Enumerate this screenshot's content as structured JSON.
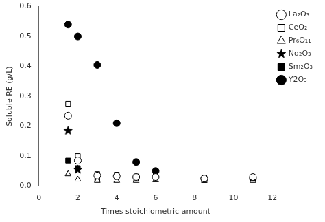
{
  "chart_data": {
    "type": "scatter",
    "xlabel": "Times stoichiometric amount",
    "ylabel": "Soluble RE (g/L)",
    "xlim": [
      0,
      12
    ],
    "ylim": [
      0,
      0.6
    ],
    "xticks": [
      0,
      2,
      4,
      6,
      8,
      10,
      12
    ],
    "yticks": [
      {
        "value": 0,
        "label": "0.0"
      },
      0.1,
      0.2,
      0.3,
      0.4,
      0.5,
      0.6
    ],
    "grid": false,
    "legend": "right",
    "series": [
      {
        "name": "La₂O₃",
        "color": "#000000",
        "marker": "circle-open",
        "x": [
          1.5,
          2.0,
          3.0,
          4.0,
          5.0,
          6.0,
          8.5,
          11.0
        ],
        "values": [
          0.235,
          0.085,
          0.035,
          0.033,
          0.03,
          0.03,
          0.025,
          0.03
        ]
      },
      {
        "name": "CeO₂",
        "color": "#000000",
        "marker": "square-open",
        "x": [
          1.5,
          2.0,
          3.0,
          4.0,
          5.0,
          6.0,
          8.5,
          11.0
        ],
        "values": [
          0.275,
          0.1,
          0.04,
          0.038,
          0.032,
          0.03,
          0.028,
          0.03
        ]
      },
      {
        "name": "Pr₆O₁₁",
        "color": "#000000",
        "marker": "triangle-open",
        "x": [
          1.5,
          2.0,
          3.0,
          4.0,
          5.0,
          6.0,
          8.5,
          11.0
        ],
        "values": [
          0.04,
          0.022,
          0.018,
          0.018,
          0.018,
          0.02,
          0.018,
          0.018
        ]
      },
      {
        "name": "Nd₂O₃",
        "color": "#000000",
        "marker": "star-filled",
        "x": [
          1.5,
          2.0
        ],
        "values": [
          0.185,
          0.055
        ]
      },
      {
        "name": "Sm₂O₃",
        "color": "#000000",
        "marker": "square-filled",
        "x": [
          1.5,
          2.0,
          3.0,
          4.0,
          5.0,
          6.0,
          8.5,
          11.0
        ],
        "values": [
          0.085,
          0.06,
          0.025,
          0.03,
          0.025,
          0.04,
          0.02,
          0.025
        ]
      },
      {
        "name": "Y2O₃",
        "color": "#000000",
        "marker": "circle-filled",
        "x": [
          1.5,
          2.0,
          3.0,
          4.0,
          5.0,
          6.0,
          8.5,
          11.0
        ],
        "values": [
          0.54,
          0.5,
          0.405,
          0.21,
          0.08,
          0.05,
          0.025,
          0.025
        ]
      }
    ]
  }
}
